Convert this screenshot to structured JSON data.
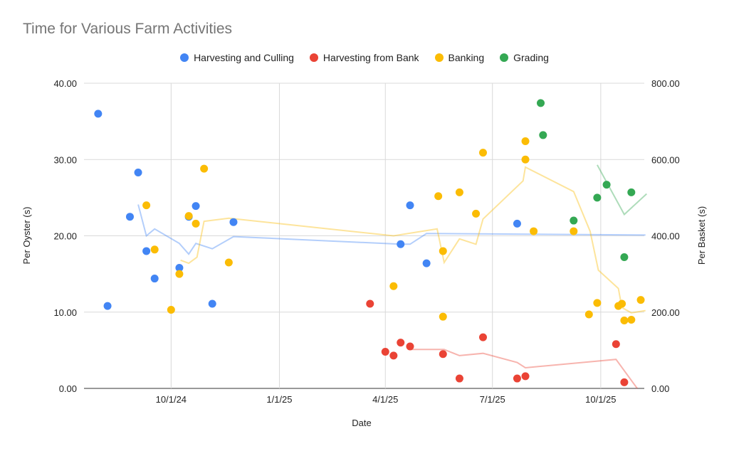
{
  "chart_data": {
    "type": "scatter",
    "title": "Time for Various Farm Activities",
    "xlabel": "Date",
    "ylabel_left": "Per Oyster (s)",
    "ylabel_right": "Per Basket (s)",
    "xlim": [
      "2024-07-19",
      "2025-11-07"
    ],
    "ylim_left": [
      0,
      40
    ],
    "ylim_right": [
      0,
      800
    ],
    "x_ticks": [
      {
        "date": "2024-10-01",
        "label": "10/1/24"
      },
      {
        "date": "2025-01-01",
        "label": "1/1/25"
      },
      {
        "date": "2025-04-01",
        "label": "4/1/25"
      },
      {
        "date": "2025-07-01",
        "label": "7/1/25"
      },
      {
        "date": "2025-10-01",
        "label": "10/1/25"
      }
    ],
    "y_ticks_left": [
      "0.00",
      "10.00",
      "20.00",
      "30.00",
      "40.00"
    ],
    "y_ticks_right": [
      "0.00",
      "200.00",
      "400.00",
      "600.00",
      "800.00"
    ],
    "grid": true,
    "legend_position": "top",
    "series": [
      {
        "name": "Harvesting and Culling",
        "color": "#4285f4",
        "points": [
          [
            "2024-07-31",
            36.0
          ],
          [
            "2024-08-08",
            10.8
          ],
          [
            "2024-08-27",
            22.5
          ],
          [
            "2024-09-03",
            28.3
          ],
          [
            "2024-09-10",
            18.0
          ],
          [
            "2024-09-17",
            14.4
          ],
          [
            "2024-10-08",
            15.8
          ],
          [
            "2024-10-16",
            22.5
          ],
          [
            "2024-10-22",
            23.9
          ],
          [
            "2024-11-05",
            11.1
          ],
          [
            "2024-11-23",
            21.8
          ],
          [
            "2025-04-14",
            18.9
          ],
          [
            "2025-04-22",
            24.0
          ],
          [
            "2025-05-06",
            16.4
          ],
          [
            "2025-07-22",
            21.6
          ]
        ],
        "trend": [
          [
            "2024-09-03",
            24.1
          ],
          [
            "2024-09-10",
            20.0
          ],
          [
            "2024-09-17",
            20.9
          ],
          [
            "2024-10-08",
            19.0
          ],
          [
            "2024-10-16",
            17.6
          ],
          [
            "2024-10-22",
            19.0
          ],
          [
            "2024-11-05",
            18.3
          ],
          [
            "2024-11-23",
            19.9
          ],
          [
            "2025-04-14",
            18.9
          ],
          [
            "2025-04-22",
            18.9
          ],
          [
            "2025-05-06",
            20.3
          ],
          [
            "2025-11-08",
            20.1
          ]
        ]
      },
      {
        "name": "Harvesting from Bank",
        "color": "#ea4335",
        "points": [
          [
            "2025-03-19",
            11.1
          ],
          [
            "2025-04-01",
            4.8
          ],
          [
            "2025-04-08",
            4.3
          ],
          [
            "2025-04-14",
            6.0
          ],
          [
            "2025-04-22",
            5.5
          ],
          [
            "2025-05-20",
            4.5
          ],
          [
            "2025-06-03",
            1.3
          ],
          [
            "2025-06-23",
            6.7
          ],
          [
            "2025-07-22",
            1.3
          ],
          [
            "2025-07-29",
            1.6
          ],
          [
            "2025-10-14",
            5.8
          ],
          [
            "2025-10-21",
            0.8
          ]
        ],
        "trend": [
          [
            "2025-04-22",
            5.1
          ],
          [
            "2025-05-21",
            5.1
          ],
          [
            "2025-06-03",
            4.3
          ],
          [
            "2025-06-23",
            4.6
          ],
          [
            "2025-07-22",
            3.4
          ],
          [
            "2025-07-29",
            2.7
          ],
          [
            "2025-10-14",
            3.8
          ],
          [
            "2025-11-01",
            0.0
          ]
        ]
      },
      {
        "name": "Banking",
        "color": "#fbbc04",
        "points": [
          [
            "2024-09-10",
            24.0
          ],
          [
            "2024-09-17",
            18.2
          ],
          [
            "2024-10-01",
            10.3
          ],
          [
            "2024-10-08",
            15.0
          ],
          [
            "2024-10-16",
            22.6
          ],
          [
            "2024-10-22",
            21.6
          ],
          [
            "2024-10-29",
            28.8
          ],
          [
            "2024-11-19",
            16.5
          ],
          [
            "2025-04-08",
            13.4
          ],
          [
            "2025-05-16",
            25.2
          ],
          [
            "2025-05-20",
            18.0
          ],
          [
            "2025-05-20",
            9.4
          ],
          [
            "2025-06-03",
            25.7
          ],
          [
            "2025-06-17",
            22.9
          ],
          [
            "2025-06-23",
            30.9
          ],
          [
            "2025-07-29",
            32.4
          ],
          [
            "2025-07-29",
            30.0
          ],
          [
            "2025-08-05",
            20.6
          ],
          [
            "2025-09-08",
            20.6
          ],
          [
            "2025-09-21",
            9.7
          ],
          [
            "2025-09-28",
            11.2
          ],
          [
            "2025-10-16",
            10.8
          ],
          [
            "2025-10-19",
            11.1
          ],
          [
            "2025-10-21",
            8.9
          ],
          [
            "2025-10-27",
            9.0
          ],
          [
            "2025-11-04",
            11.6
          ]
        ],
        "trend": [
          [
            "2024-10-09",
            16.8
          ],
          [
            "2024-10-16",
            16.4
          ],
          [
            "2024-10-23",
            17.2
          ],
          [
            "2024-10-29",
            21.9
          ],
          [
            "2024-11-19",
            22.3
          ],
          [
            "2025-04-08",
            20.0
          ],
          [
            "2025-05-15",
            20.9
          ],
          [
            "2025-05-21",
            16.5
          ],
          [
            "2025-06-03",
            19.6
          ],
          [
            "2025-06-17",
            18.9
          ],
          [
            "2025-06-23",
            22.2
          ],
          [
            "2025-07-27",
            27.2
          ],
          [
            "2025-07-29",
            29.0
          ],
          [
            "2025-09-08",
            25.8
          ],
          [
            "2025-09-22",
            20.6
          ],
          [
            "2025-09-29",
            15.5
          ],
          [
            "2025-10-16",
            13.1
          ],
          [
            "2025-10-19",
            10.6
          ],
          [
            "2025-10-27",
            9.9
          ],
          [
            "2025-11-08",
            10.2
          ]
        ]
      },
      {
        "name": "Grading",
        "color": "#34a853",
        "points": [
          [
            "2025-08-11",
            37.4
          ],
          [
            "2025-08-13",
            33.2
          ],
          [
            "2025-09-08",
            22.0
          ],
          [
            "2025-09-28",
            25.0
          ],
          [
            "2025-10-06",
            26.7
          ],
          [
            "2025-10-21",
            17.2
          ],
          [
            "2025-10-27",
            25.7
          ]
        ],
        "trend": [
          [
            "2025-09-28",
            29.3
          ],
          [
            "2025-10-21",
            22.8
          ],
          [
            "2025-11-09",
            25.5
          ]
        ]
      }
    ]
  }
}
